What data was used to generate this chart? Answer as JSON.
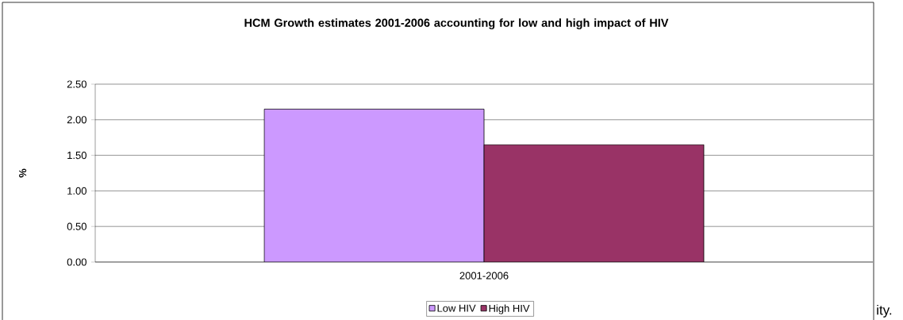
{
  "chart_data": {
    "type": "bar",
    "title": "HCM Growth estimates 2001-2006 accounting for low and high impact of HIV",
    "ylabel": "%",
    "categories": [
      "2001-2006"
    ],
    "series": [
      {
        "name": "Low HIV",
        "color": "#cc99ff",
        "values": [
          2.15
        ]
      },
      {
        "name": "High HIV",
        "color": "#993366",
        "values": [
          1.65
        ]
      }
    ],
    "ylim": [
      0,
      2.5
    ],
    "yticks": [
      {
        "value": 0,
        "label": "0.00"
      },
      {
        "value": 0.5,
        "label": "0.50"
      },
      {
        "value": 1,
        "label": "1.00"
      },
      {
        "value": 1.5,
        "label": "1.50"
      },
      {
        "value": 2,
        "label": "2.00"
      },
      {
        "value": 2.5,
        "label": "2.50"
      }
    ],
    "grid": "y",
    "legend": "bottom",
    "annotations": [
      "ity."
    ]
  }
}
